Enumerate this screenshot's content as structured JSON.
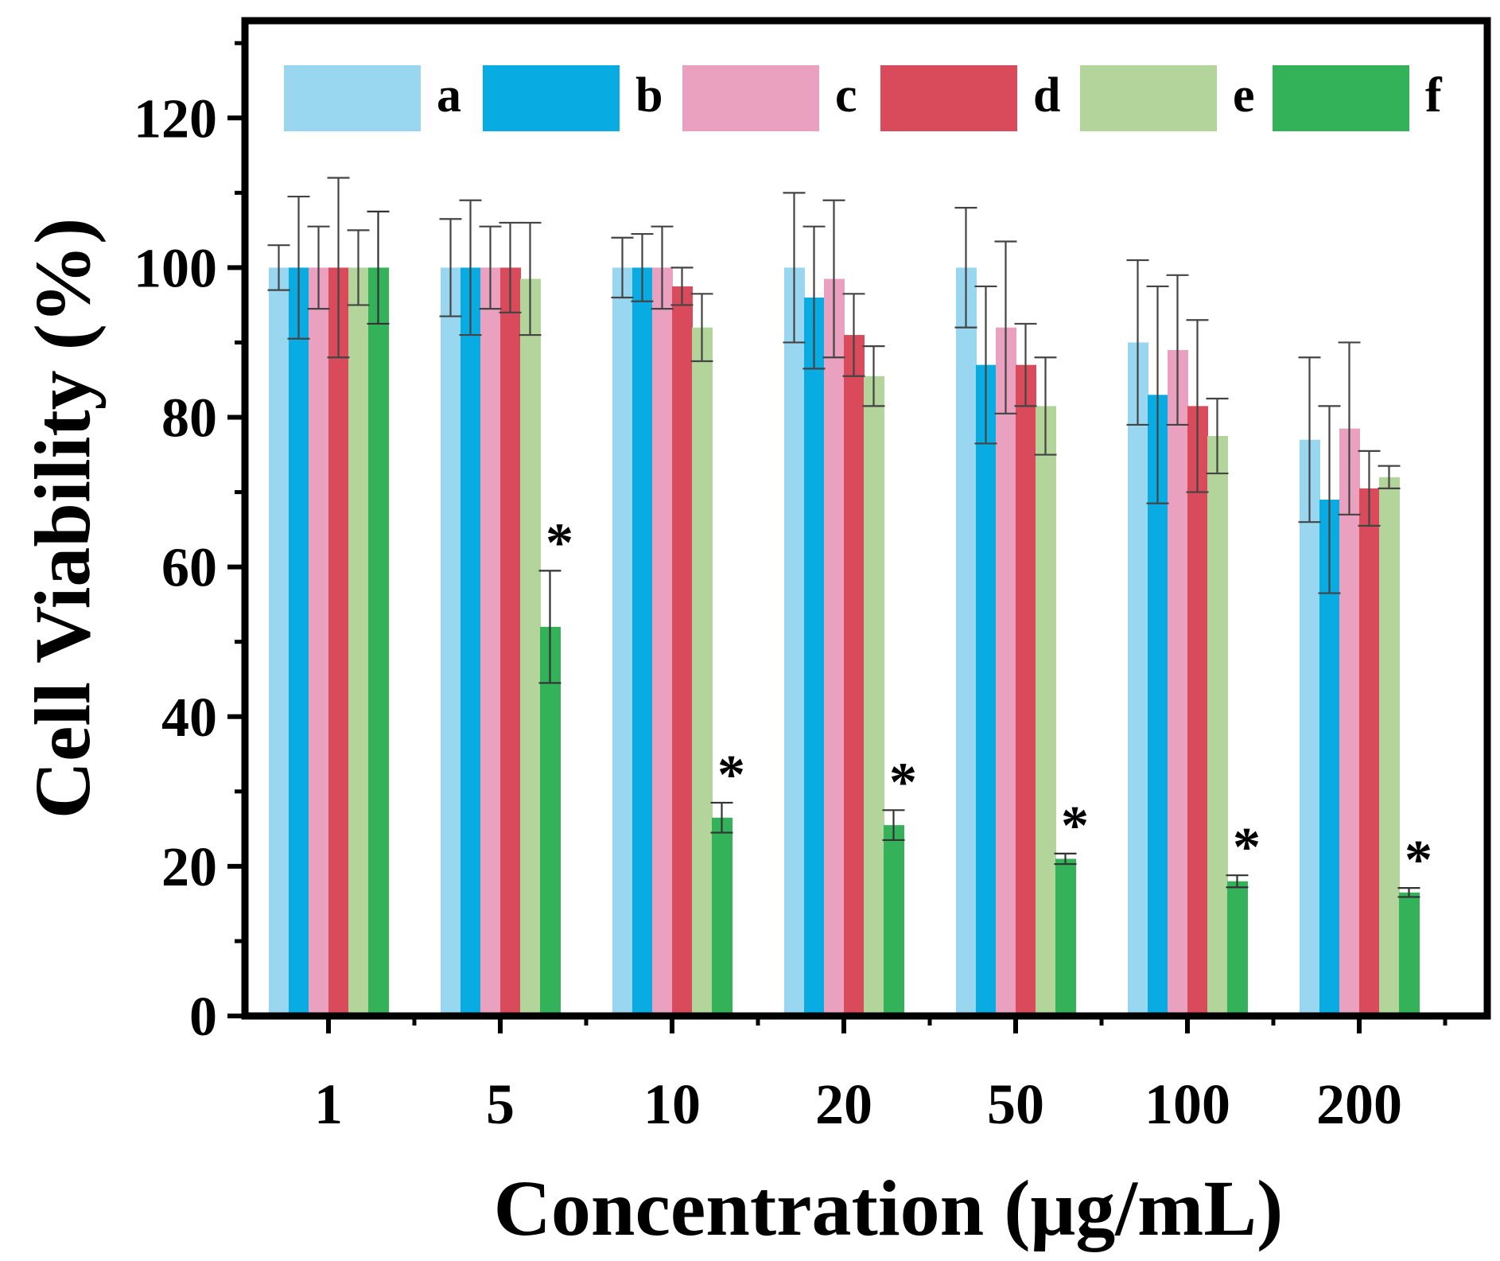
{
  "chart_data": {
    "type": "bar",
    "title": "",
    "xlabel": "Concentration (μg/mL)",
    "ylabel": "Cell Viability (%)",
    "ylim": [
      0,
      133
    ],
    "yticks": [
      0,
      20,
      40,
      60,
      80,
      100,
      120
    ],
    "categories": [
      "1",
      "5",
      "10",
      "20",
      "50",
      "100",
      "200"
    ],
    "legend_position": "top",
    "series": [
      {
        "name": "a",
        "color": "#99d7f0",
        "values": [
          100,
          100,
          100,
          100,
          100,
          90,
          77
        ],
        "errors": [
          3,
          6.5,
          4,
          10,
          8,
          11,
          11
        ]
      },
      {
        "name": "b",
        "color": "#08ace3",
        "values": [
          100,
          100,
          100,
          96,
          87,
          83,
          69
        ],
        "errors": [
          9.5,
          9,
          4.5,
          9.5,
          10.5,
          14.5,
          12.5
        ]
      },
      {
        "name": "c",
        "color": "#eaa1c0",
        "values": [
          100,
          100,
          100,
          98.5,
          92,
          89,
          78.5
        ],
        "errors": [
          5.5,
          5.5,
          5.5,
          10.5,
          11.5,
          10,
          11.5
        ]
      },
      {
        "name": "d",
        "color": "#d94b5a",
        "values": [
          100,
          100,
          97.5,
          91,
          87,
          81.5,
          70.5
        ],
        "errors": [
          12,
          6,
          2.5,
          5.5,
          5.5,
          11.5,
          5
        ]
      },
      {
        "name": "e",
        "color": "#b3d49a",
        "values": [
          100,
          98.5,
          92,
          85.5,
          81.5,
          77.5,
          72
        ],
        "errors": [
          5,
          7.5,
          4.5,
          4,
          6.5,
          5,
          1.5
        ]
      },
      {
        "name": "f",
        "color": "#33b259",
        "values": [
          100,
          52,
          26.5,
          25.5,
          21,
          18,
          16.5
        ],
        "errors": [
          7.5,
          7.5,
          2,
          2,
          0.7,
          0.8,
          0.6
        ]
      }
    ],
    "annotations": [
      {
        "category": "5",
        "series": "f",
        "text": "*"
      },
      {
        "category": "10",
        "series": "f",
        "text": "*"
      },
      {
        "category": "20",
        "series": "f",
        "text": "*"
      },
      {
        "category": "50",
        "series": "f",
        "text": "*"
      },
      {
        "category": "100",
        "series": "f",
        "text": "*"
      },
      {
        "category": "200",
        "series": "f",
        "text": "*"
      }
    ]
  }
}
